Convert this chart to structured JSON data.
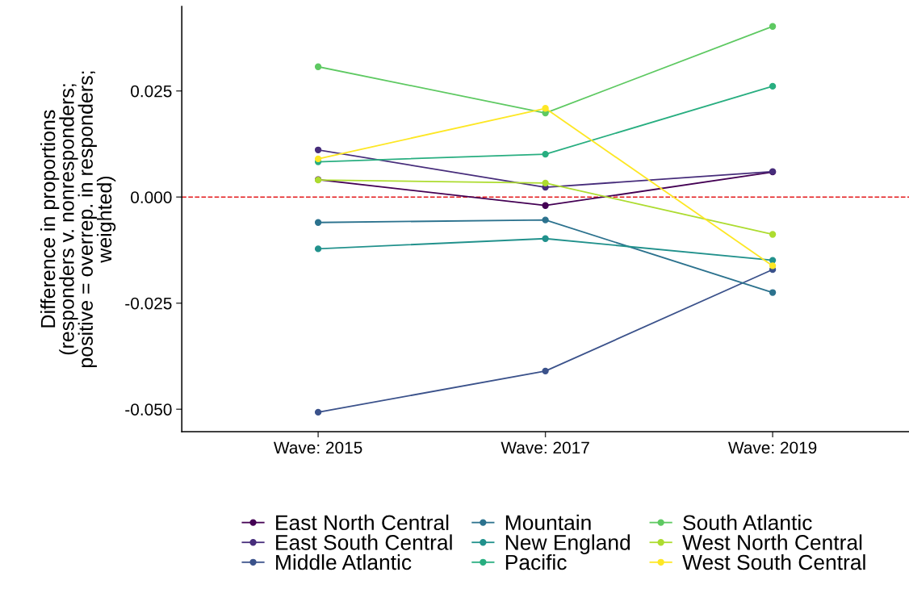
{
  "chart_data": {
    "type": "line",
    "categories": [
      "Wave: 2015",
      "Wave: 2017",
      "Wave: 2019"
    ],
    "ylabel": "Difference in proportions\n(responders v. nonresponders;\npositive = overrep. in responders;\nweighted)",
    "ylim": [
      -0.0553,
      0.0449
    ],
    "yticks": [
      {
        "value": 0.025,
        "label": "0.025"
      },
      {
        "value": 0,
        "label": "0.000"
      },
      {
        "value": -0.025,
        "label": "-0.025"
      },
      {
        "value": -0.05,
        "label": "-0.050"
      }
    ],
    "grid": false,
    "legend": "bottom",
    "marker": "circle",
    "line_style": "solid",
    "ref_lines": [
      {
        "axis": "y",
        "value": 0,
        "color": "#e31a1c",
        "line_style": "dashed"
      }
    ],
    "series": [
      {
        "name": "East North Central",
        "color": "#440154",
        "values": [
          0.0041,
          -0.002,
          0.0059
        ]
      },
      {
        "name": "East South Central",
        "color": "#472d7b",
        "values": [
          0.0111,
          0.0023,
          0.006
        ]
      },
      {
        "name": "Middle Atlantic",
        "color": "#3b528b",
        "values": [
          -0.0507,
          -0.041,
          -0.0171
        ]
      },
      {
        "name": "Mountain",
        "color": "#2c728e",
        "values": [
          -0.006,
          -0.0054,
          -0.0225
        ]
      },
      {
        "name": "New England",
        "color": "#21918c",
        "values": [
          -0.0122,
          -0.0098,
          -0.0149
        ]
      },
      {
        "name": "Pacific",
        "color": "#28ae80",
        "values": [
          0.0083,
          0.0101,
          0.0261
        ]
      },
      {
        "name": "South Atlantic",
        "color": "#5ec962",
        "values": [
          0.0307,
          0.0198,
          0.0402
        ]
      },
      {
        "name": "West North Central",
        "color": "#addc30",
        "values": [
          0.004,
          0.0033,
          -0.0088
        ]
      },
      {
        "name": "West South Central",
        "color": "#fde725",
        "values": [
          0.009,
          0.0209,
          -0.0162
        ]
      }
    ]
  }
}
